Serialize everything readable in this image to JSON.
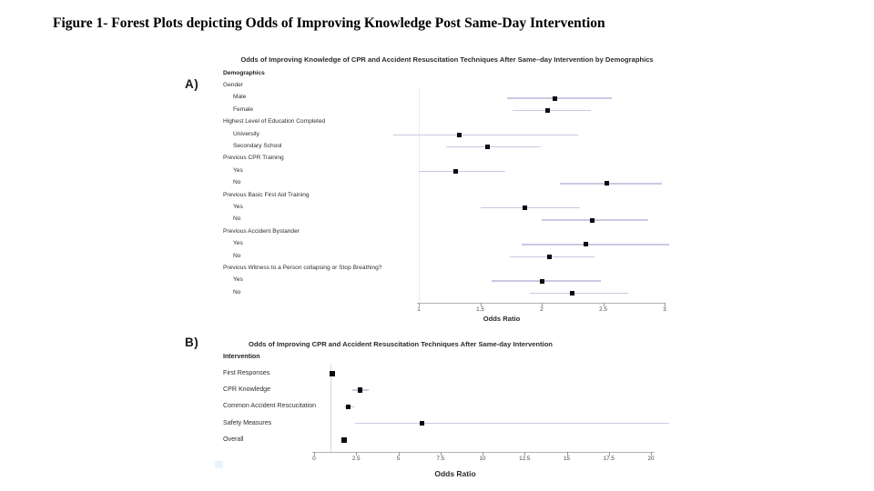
{
  "figure_caption": "Figure 1- Forest Plots depicting Odds of Improving Knowledge Post Same-Day Intervention",
  "colors": {
    "ci_line": "#c7c9e3",
    "marker": "#0c0c0c",
    "axis": "#b3b3b3",
    "tick": "#999999",
    "ref_line_a": "#ebebf3",
    "ref_line_b": "#d6d6d6"
  },
  "chart_data": [
    {
      "type": "forest",
      "panel_label": "A)",
      "title": "Odds of Improving Knowledge of CPR and Accident Resuscitation Techniques After Same–day Intervention by Demographics",
      "xlabel": "Odds Ratio",
      "xlim": [
        1,
        3
      ],
      "xticks": [
        1,
        1.5,
        2,
        2.5,
        3
      ],
      "tick_labels": [
        "1",
        "1.5",
        "2",
        "2.5",
        "3"
      ],
      "reference_line": 1,
      "legend": "none",
      "grid": "off",
      "rows": [
        {
          "kind": "section",
          "label": "Demographics"
        },
        {
          "kind": "group",
          "label": "Gender"
        },
        {
          "kind": "item",
          "label": "Male",
          "or": 2.11,
          "ci": [
            1.72,
            2.57
          ]
        },
        {
          "kind": "item",
          "label": "Female",
          "or": 2.05,
          "ci": [
            1.76,
            2.4
          ]
        },
        {
          "kind": "group",
          "label": "Highest Level of Education Completed"
        },
        {
          "kind": "item",
          "label": "University",
          "or": 1.33,
          "ci": [
            0.79,
            2.3
          ]
        },
        {
          "kind": "item",
          "label": "Secondary School",
          "or": 1.56,
          "ci": [
            1.22,
            1.99
          ]
        },
        {
          "kind": "group",
          "label": "Previous CPR Training"
        },
        {
          "kind": "item",
          "label": "Yes",
          "or": 1.3,
          "ci": [
            1.0,
            1.7
          ]
        },
        {
          "kind": "item",
          "label": "No",
          "or": 2.53,
          "ci": [
            2.15,
            2.98
          ]
        },
        {
          "kind": "group",
          "label": "Previous Basic First Aid Training"
        },
        {
          "kind": "item",
          "label": "Yes",
          "or": 1.86,
          "ci": [
            1.5,
            2.31
          ]
        },
        {
          "kind": "item",
          "label": "No",
          "or": 2.41,
          "ci": [
            2.0,
            2.87
          ]
        },
        {
          "kind": "group",
          "label": "Previous Accident Bystander"
        },
        {
          "kind": "item",
          "label": "Yes",
          "or": 2.36,
          "ci": [
            1.84,
            3.04
          ]
        },
        {
          "kind": "item",
          "label": "No",
          "or": 2.06,
          "ci": [
            1.74,
            2.43
          ]
        },
        {
          "kind": "group",
          "label": "Previous Witness to a Person collapsing or Stop Breathing?"
        },
        {
          "kind": "item",
          "label": "Yes",
          "or": 2.0,
          "ci": [
            1.59,
            2.48
          ]
        },
        {
          "kind": "item",
          "label": "No",
          "or": 2.25,
          "ci": [
            1.9,
            2.7
          ]
        }
      ]
    },
    {
      "type": "forest",
      "panel_label": "B)",
      "title": "Odds of Improving CPR and Accident Resuscitation Techniques After Same-day Intervention",
      "xlabel": "Odds Ratio",
      "xlim": [
        0,
        20
      ],
      "xticks": [
        0,
        2.5,
        5,
        7.5,
        10,
        12.5,
        15,
        17.5,
        20
      ],
      "tick_labels": [
        "0",
        "2.5",
        "5",
        "7.5",
        "10",
        "12.5",
        "15",
        "17.5",
        "20"
      ],
      "reference_line": 1,
      "legend": "none",
      "grid": "off",
      "rows": [
        {
          "kind": "section",
          "label": "Intervention"
        },
        {
          "kind": "item",
          "label": "First Responses",
          "or": 1.08,
          "ci": [
            1.02,
            1.16
          ]
        },
        {
          "kind": "item",
          "label": "CPR Knowledge",
          "or": 2.74,
          "ci": [
            2.28,
            3.25
          ]
        },
        {
          "kind": "item",
          "label": "Common Accident Rescucitation",
          "or": 2.02,
          "ci": [
            1.78,
            2.42
          ]
        },
        {
          "kind": "item",
          "label": "Safety Measures",
          "or": 6.4,
          "ci": [
            2.45,
            21.1
          ]
        },
        {
          "kind": "item",
          "label": "Overall",
          "or": 1.78,
          "ci": [
            1.65,
            1.95
          ]
        }
      ]
    }
  ]
}
